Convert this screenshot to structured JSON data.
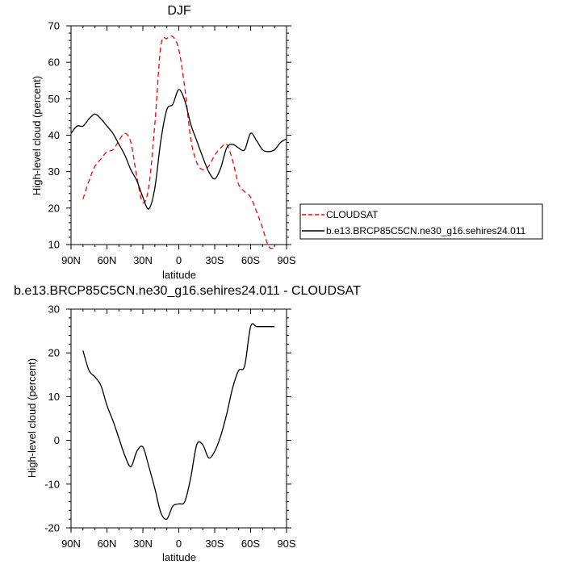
{
  "chart_data": [
    {
      "type": "line",
      "title": "DJF",
      "xlabel": "latitude",
      "ylabel": "High-level cloud (percent)",
      "xlim": [
        90,
        -90
      ],
      "ylim": [
        10,
        70
      ],
      "x_ticks": [
        90,
        60,
        30,
        0,
        -30,
        -60,
        -90
      ],
      "x_tick_labels": [
        "90N",
        "60N",
        "30N",
        "0",
        "30S",
        "60S",
        "90S"
      ],
      "y_ticks": [
        10,
        20,
        30,
        40,
        50,
        60,
        70
      ],
      "y_tick_labels": [
        "10",
        "20",
        "30",
        "40",
        "50",
        "60",
        "70"
      ],
      "legend": {
        "position": "right"
      },
      "series": [
        {
          "name": "CLOUDSAT",
          "color": "#ff0000",
          "dash": "dashed",
          "x": [
            80,
            75,
            70,
            65,
            60,
            55,
            50,
            45,
            40,
            35,
            30,
            25,
            20,
            15,
            10,
            5,
            0,
            -5,
            -10,
            -15,
            -20,
            -25,
            -30,
            -35,
            -40,
            -45,
            -50,
            -55,
            -60,
            -65,
            -70,
            -75,
            -80
          ],
          "y": [
            22.5,
            27.5,
            31.5,
            33.5,
            35.5,
            36.0,
            38.5,
            40.5,
            38.0,
            28.5,
            21.5,
            26.0,
            43.0,
            64.5,
            66.5,
            67.0,
            63.5,
            53.0,
            39.0,
            32.5,
            30.5,
            31.5,
            34.5,
            36.5,
            37.5,
            33.0,
            26.5,
            24.5,
            23.0,
            19.0,
            14.5,
            9.5,
            9.0
          ]
        },
        {
          "name": "b.e13.BRCP85C5CN.ne30_g16.sehires24.011",
          "color": "#000000",
          "dash": "solid",
          "x": [
            90,
            85,
            80,
            75,
            70,
            65,
            60,
            55,
            50,
            45,
            40,
            35,
            30,
            25,
            20,
            15,
            10,
            5,
            0,
            -5,
            -10,
            -15,
            -20,
            -25,
            -30,
            -35,
            -40,
            -45,
            -50,
            -55,
            -60,
            -65,
            -70,
            -75,
            -80,
            -85,
            -90
          ],
          "y": [
            40.5,
            42.5,
            42.5,
            44.5,
            45.8,
            44.5,
            42.5,
            40.5,
            37.5,
            34.5,
            30.5,
            27.5,
            23.0,
            19.8,
            25.5,
            38.5,
            47.0,
            48.5,
            52.5,
            49.5,
            43.0,
            38.5,
            34.0,
            30.0,
            28.0,
            31.0,
            36.5,
            37.5,
            36.5,
            36.0,
            40.5,
            38.5,
            36.0,
            35.5,
            36.0,
            38.0,
            39.0
          ]
        }
      ]
    },
    {
      "type": "line",
      "title": "b.e13.BRCP85C5CN.ne30_g16.sehires24.011 - CLOUDSAT",
      "xlabel": "latitude",
      "ylabel": "High-level cloud (percent)",
      "xlim": [
        90,
        -90
      ],
      "ylim": [
        -20,
        30
      ],
      "x_ticks": [
        90,
        60,
        30,
        0,
        -30,
        -60,
        -90
      ],
      "x_tick_labels": [
        "90N",
        "60N",
        "30N",
        "0",
        "30S",
        "60S",
        "90S"
      ],
      "y_ticks": [
        -20,
        -10,
        0,
        10,
        20,
        30
      ],
      "y_tick_labels": [
        "-20",
        "-10",
        "0",
        "10",
        "20",
        "30"
      ],
      "series": [
        {
          "color": "#000000",
          "dash": "solid",
          "x": [
            80,
            75,
            70,
            65,
            60,
            55,
            50,
            45,
            40,
            35,
            30,
            25,
            20,
            15,
            10,
            5,
            0,
            -5,
            -10,
            -15,
            -20,
            -25,
            -30,
            -35,
            -40,
            -45,
            -50,
            -55,
            -60,
            -65,
            -70,
            -75,
            -80
          ],
          "y": [
            20.5,
            16.0,
            14.5,
            12.5,
            8.0,
            4.5,
            0.5,
            -3.5,
            -6.0,
            -2.5,
            -1.5,
            -6.0,
            -11.0,
            -16.5,
            -18.0,
            -15.0,
            -14.5,
            -14.0,
            -8.5,
            -1.0,
            -1.0,
            -4.0,
            -2.5,
            1.0,
            6.0,
            12.0,
            16.0,
            17.0,
            26.0,
            26.0,
            26.0,
            26.0,
            26.0
          ]
        }
      ]
    }
  ]
}
